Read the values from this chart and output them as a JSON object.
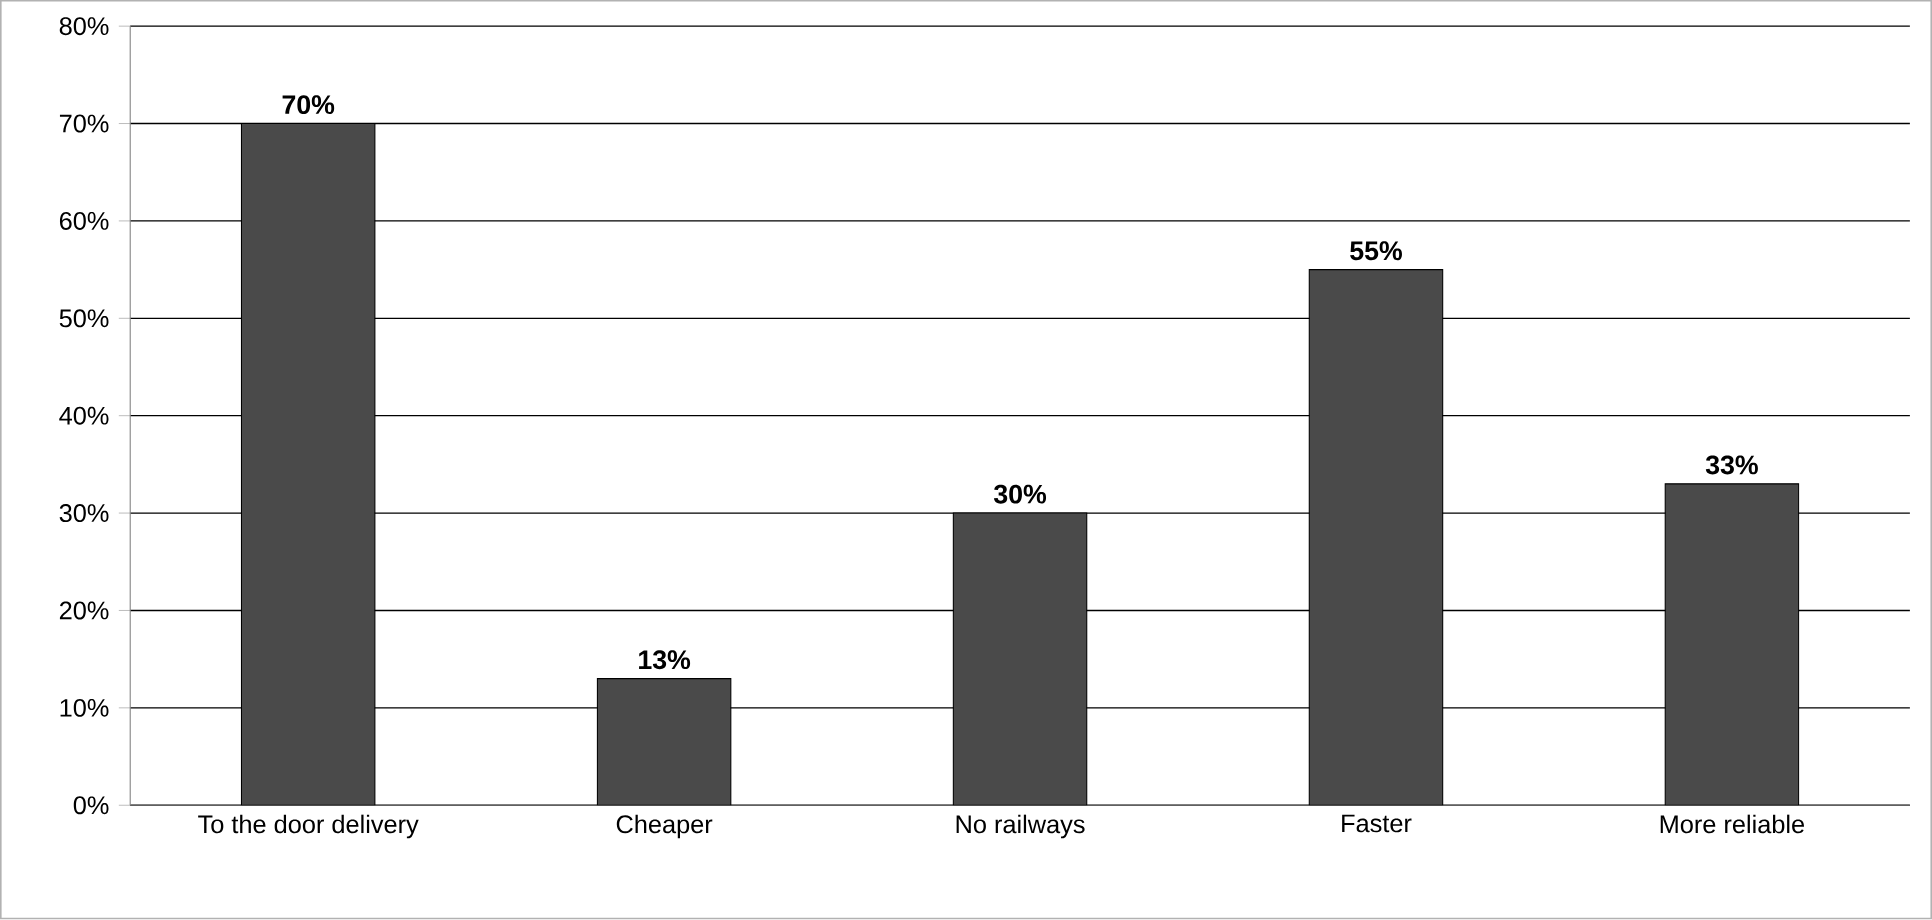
{
  "chart_data": {
    "type": "bar",
    "categories": [
      "To the door delivery",
      "Cheaper",
      "No railways",
      "Faster",
      "More reliable"
    ],
    "values": [
      70,
      13,
      30,
      55,
      33
    ],
    "value_labels": [
      "70%",
      "13%",
      "30%",
      "55%",
      "33%"
    ],
    "color": "#4a4a4a",
    "ylim": [
      0,
      80
    ],
    "yticks": [
      {
        "value": 0,
        "label": "0%"
      },
      {
        "value": 10,
        "label": "10%"
      },
      {
        "value": 20,
        "label": "20%"
      },
      {
        "value": 30,
        "label": "30%"
      },
      {
        "value": 40,
        "label": "40%"
      },
      {
        "value": 50,
        "label": "50%"
      },
      {
        "value": 60,
        "label": "60%"
      },
      {
        "value": 70,
        "label": "70%"
      },
      {
        "value": 80,
        "label": "80%"
      }
    ],
    "grid": "y"
  }
}
